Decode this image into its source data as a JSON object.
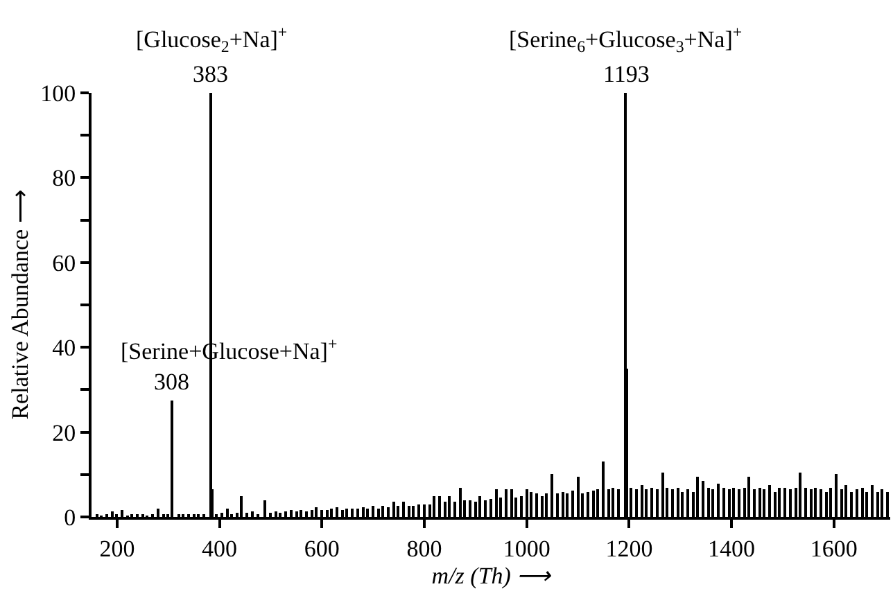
{
  "chart_data": {
    "type": "bar",
    "xlabel": "m/z (Th) ⟶",
    "ylabel": "Relative Abundance ⟶",
    "x": [
      160,
      170,
      180,
      190,
      200,
      210,
      220,
      230,
      240,
      250,
      260,
      270,
      280,
      290,
      300,
      308,
      320,
      330,
      340,
      350,
      360,
      370,
      383,
      386,
      395,
      405,
      415,
      425,
      435,
      443,
      455,
      465,
      475,
      490,
      500,
      510,
      520,
      530,
      540,
      550,
      560,
      570,
      580,
      590,
      600,
      610,
      620,
      630,
      640,
      650,
      660,
      670,
      680,
      690,
      700,
      710,
      720,
      730,
      740,
      750,
      760,
      770,
      780,
      790,
      800,
      810,
      820,
      830,
      840,
      850,
      860,
      870,
      880,
      890,
      900,
      910,
      920,
      930,
      940,
      950,
      960,
      970,
      980,
      990,
      1000,
      1010,
      1020,
      1030,
      1040,
      1050,
      1060,
      1070,
      1080,
      1090,
      1100,
      1110,
      1120,
      1130,
      1140,
      1150,
      1160,
      1170,
      1180,
      1193,
      1196,
      1205,
      1215,
      1225,
      1235,
      1245,
      1255,
      1265,
      1275,
      1285,
      1295,
      1305,
      1315,
      1325,
      1335,
      1345,
      1355,
      1365,
      1375,
      1385,
      1395,
      1405,
      1415,
      1425,
      1435,
      1445,
      1455,
      1465,
      1475,
      1485,
      1495,
      1505,
      1515,
      1525,
      1535,
      1545,
      1555,
      1565,
      1575,
      1585,
      1595,
      1605,
      1615,
      1625,
      1635,
      1645,
      1655,
      1665,
      1675,
      1685,
      1695,
      1705
    ],
    "values": [
      0.5,
      0.3,
      0.8,
      1.2,
      0.4,
      1.5,
      0.3,
      0.5,
      0.4,
      0.6,
      0.3,
      0.7,
      1.8,
      0.5,
      0.6,
      27.5,
      0.5,
      0.4,
      0.6,
      0.5,
      0.4,
      0.7,
      100,
      6.5,
      0.8,
      1.0,
      1.8,
      0.7,
      0.9,
      5,
      1.0,
      1.2,
      0.8,
      4,
      1.0,
      1.3,
      1.0,
      1.2,
      1.5,
      1.2,
      1.6,
      1.3,
      1.5,
      2.2,
      1.5,
      1.7,
      2.0,
      2.3,
      1.6,
      1.8,
      2.0,
      1.9,
      2.3,
      2.0,
      2.5,
      2.1,
      2.6,
      2.3,
      3.5,
      2.6,
      3.6,
      2.7,
      2.5,
      2.8,
      3.1,
      2.9,
      4.8,
      5.0,
      3.5,
      4.8,
      3.6,
      7.0,
      3.8,
      4.0,
      3.5,
      5.0,
      4.0,
      4.2,
      6.5,
      4.5,
      6.5,
      6.5,
      4.5,
      5.0,
      6.5,
      6.0,
      5.5,
      5.0,
      5.5,
      10.0,
      5.5,
      6.0,
      5.5,
      6.2,
      9.5,
      5.5,
      6.0,
      6.2,
      6.5,
      13.0,
      6.5,
      7.0,
      6.5,
      100,
      35,
      7.0,
      6.5,
      7.5,
      6.5,
      7.0,
      6.5,
      10.5,
      7.0,
      6.5,
      7.0,
      6.0,
      6.5,
      6.0,
      9.5,
      8.5,
      7.0,
      6.5,
      8.0,
      7.0,
      6.5,
      7.0,
      6.5,
      7.0,
      9.5,
      6.5,
      7.0,
      6.5,
      7.5,
      6.0,
      7.0,
      7.0,
      6.5,
      7.0,
      10.5,
      7.0,
      6.5,
      7.0,
      6.5,
      6.0,
      7.0,
      10.0,
      6.5,
      7.5,
      6.0,
      6.5,
      7.0,
      6.0,
      7.5,
      6.0,
      6.5,
      6.0
    ],
    "color": "#000000",
    "xlim": [
      150,
      1710
    ],
    "xticks": [
      200,
      400,
      600,
      800,
      1000,
      1200,
      1400,
      1600
    ],
    "ylim": [
      0,
      100
    ],
    "yticks": [
      0,
      {
        "value": 10,
        "label": null
      },
      20,
      {
        "value": 30,
        "label": null
      },
      40,
      {
        "value": 50,
        "label": null
      },
      60,
      {
        "value": 70,
        "label": null
      },
      80,
      {
        "value": 90,
        "label": null
      },
      100
    ],
    "annotations": [
      {
        "text": "383",
        "x": 383,
        "y": 100
      },
      {
        "text": "[Glucose$_{2}$+Na]$^{+}$",
        "x": 383,
        "y": 100
      },
      {
        "text": "1193",
        "x": 1193,
        "y": 100
      },
      {
        "text": "[Serine$_{6}$+Glucose$_{3}$+Na]$^{+}$",
        "x": 1193,
        "y": 100
      },
      {
        "text": "308",
        "x": 308,
        "y": 27.5
      },
      {
        "text": "[Serine+Glucose+Na]$^{+}$",
        "x": 308,
        "y": 27.5
      }
    ]
  }
}
